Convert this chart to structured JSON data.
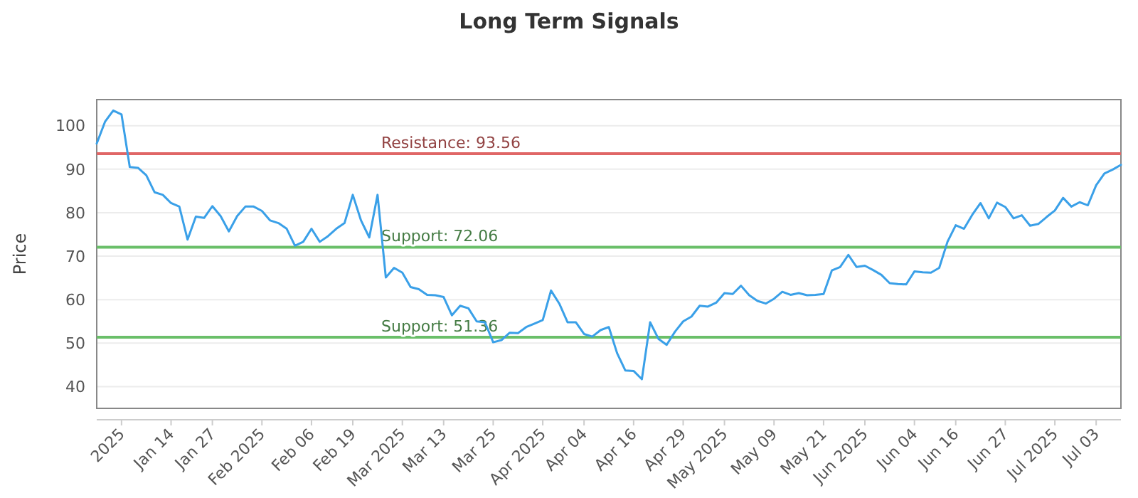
{
  "chart_data": {
    "type": "line",
    "title": "Long Term Signals",
    "ylabel": "Price",
    "categories": [
      null,
      null,
      null,
      "2025",
      null,
      null,
      null,
      null,
      null,
      "Jan 14",
      null,
      null,
      null,
      null,
      "Jan 27",
      null,
      null,
      null,
      null,
      null,
      "Feb 2025",
      null,
      null,
      null,
      null,
      null,
      "Feb 06",
      null,
      null,
      null,
      null,
      "Feb 19",
      null,
      null,
      null,
      null,
      null,
      "Mar 2025",
      null,
      null,
      null,
      null,
      "Mar 13",
      null,
      null,
      null,
      null,
      null,
      "Mar 25",
      null,
      null,
      null,
      null,
      null,
      "Apr 2025",
      null,
      null,
      null,
      null,
      "Apr 04",
      null,
      null,
      null,
      null,
      null,
      "Apr 16",
      null,
      null,
      null,
      null,
      null,
      "Apr 29",
      null,
      null,
      null,
      null,
      "May 2025",
      null,
      null,
      null,
      null,
      null,
      "May 09",
      null,
      null,
      null,
      null,
      null,
      "May 21",
      null,
      null,
      null,
      null,
      "Jun 2025",
      null,
      null,
      null,
      null,
      null,
      "Jun 04",
      null,
      null,
      null,
      null,
      "Jun 16",
      null,
      null,
      null,
      null,
      null,
      "Jun 27",
      null,
      null,
      null,
      null,
      null,
      "Jul 2025",
      null,
      null,
      null,
      null,
      "Jul 03",
      null,
      null,
      null
    ],
    "series": [
      {
        "color": "#3aa0e8",
        "values": [
          95.9,
          100.9,
          103.5,
          102.6,
          90.5,
          90.3,
          88.6,
          84.7,
          84.1,
          82.2,
          81.4,
          73.8,
          79.1,
          78.8,
          81.5,
          79.2,
          75.7,
          79.2,
          81.4,
          81.4,
          80.4,
          78.2,
          77.6,
          76.3,
          72.4,
          73.3,
          76.3,
          73.3,
          74.6,
          76.3,
          77.6,
          84.1,
          78.2,
          74.3,
          84.1,
          65.1,
          67.3,
          66.2,
          62.9,
          62.4,
          61.1,
          61.0,
          60.6,
          56.4,
          58.6,
          58.0,
          55.0,
          54.8,
          50.2,
          50.7,
          52.4,
          52.3,
          53.7,
          54.5,
          55.3,
          62.1,
          59.1,
          54.8,
          54.8,
          52.1,
          51.5,
          53.0,
          53.7,
          47.7,
          43.7,
          43.6,
          41.7,
          54.8,
          51.0,
          49.6,
          52.6,
          55.0,
          56.1,
          58.6,
          58.4,
          59.3,
          61.5,
          61.3,
          63.2,
          61.0,
          59.7,
          59.1,
          60.2,
          61.8,
          61.1,
          61.5,
          61.0,
          61.1,
          61.3,
          66.7,
          67.5,
          70.3,
          67.5,
          67.8,
          66.8,
          65.7,
          63.8,
          63.6,
          63.5,
          66.5,
          66.3,
          66.2,
          67.3,
          73.3,
          77.1,
          76.3,
          79.5,
          82.2,
          78.7,
          82.3,
          81.3,
          78.7,
          79.4,
          77.0,
          77.4,
          79.0,
          80.5,
          83.4,
          81.4,
          82.4,
          81.7,
          86.3,
          89.0,
          89.9,
          91.0
        ]
      }
    ],
    "ylim": [
      35,
      106
    ],
    "yticks": [
      40,
      50,
      60,
      70,
      80,
      90,
      100
    ],
    "grid": "y",
    "ref_lines": [
      {
        "axis": "y",
        "value": 93.56,
        "label": "Resistance: 93.56",
        "color": "#e06666"
      },
      {
        "axis": "y",
        "value": 72.06,
        "label": "Support: 72.06",
        "color": "#6abf69"
      },
      {
        "axis": "y",
        "value": 51.36,
        "label": "Support: 51.36",
        "color": "#6abf69"
      }
    ]
  }
}
